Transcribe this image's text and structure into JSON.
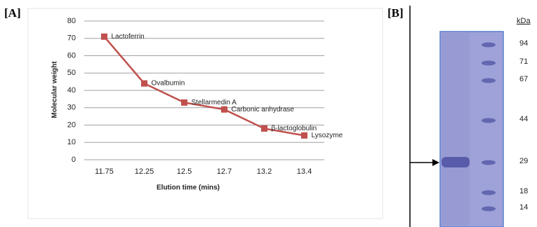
{
  "chart_data": {
    "type": "line",
    "panel_label": "[A]",
    "x_label": "Elution time (mins)",
    "y_label": "Molecular weight",
    "categories": [
      "11.75",
      "12.25",
      "12.5",
      "12.7",
      "13.2",
      "13.4"
    ],
    "series": [
      {
        "name": "Molecular weight",
        "color": "#c0504d",
        "values": [
          71,
          44,
          33,
          29,
          18,
          14
        ]
      }
    ],
    "point_labels": [
      "Lactoferrin",
      "Ovalbumin",
      "Stellarmedin A",
      "Carbonic anhydrase",
      "β-lactoglobulin",
      "Lysozyme"
    ],
    "ylim": [
      0,
      80
    ],
    "yticks": [
      0,
      10,
      20,
      30,
      40,
      50,
      60,
      70,
      80
    ],
    "grid": true
  },
  "gel": {
    "panel_label": "[B]",
    "unit": "kDa",
    "markers": [
      "94",
      "71",
      "67",
      "44",
      "29",
      "18",
      "14"
    ]
  }
}
